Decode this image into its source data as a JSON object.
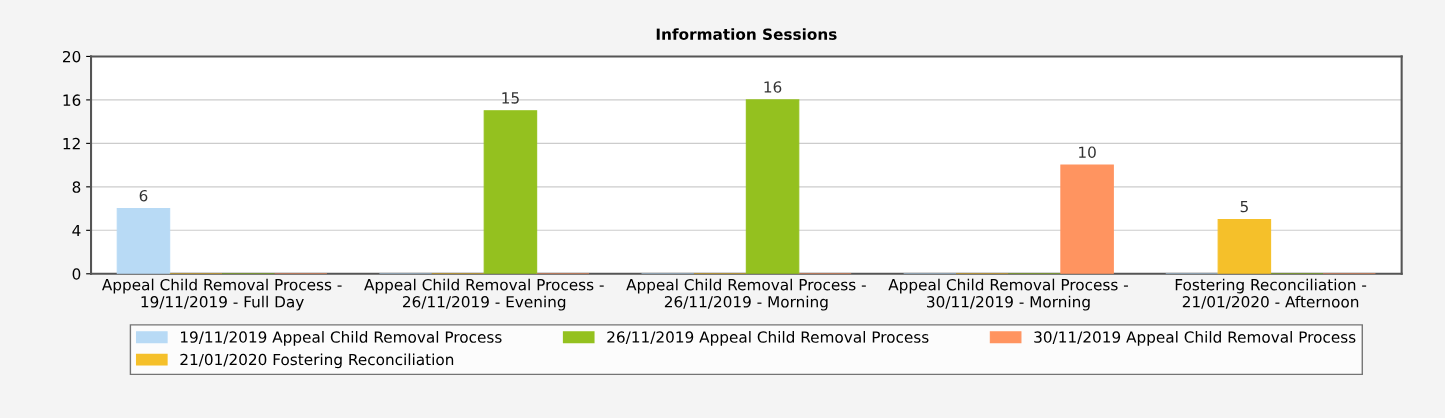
{
  "chart_data": {
    "type": "bar",
    "title": "Information Sessions",
    "categories": [
      "Appeal Child Removal Process -\n19/11/2019 - Full Day",
      "Appeal Child Removal Process -\n26/11/2019 - Evening",
      "Appeal Child Removal Process -\n26/11/2019 - Morning",
      "Appeal Child Removal Process -\n30/11/2019 - Morning",
      "Fostering Reconciliation -\n21/01/2020 - Afternoon"
    ],
    "series": [
      {
        "name": "19/11/2019 Appeal Child Removal Process",
        "color": "#b8daf5",
        "values": [
          6,
          0,
          0,
          0,
          0
        ],
        "value_labels": [
          "6",
          null,
          null,
          null,
          null
        ]
      },
      {
        "name": "21/01/2020 Fostering Reconciliation",
        "color": "#f5c02a",
        "values": [
          0,
          0,
          0,
          0,
          5
        ],
        "value_labels": [
          null,
          null,
          null,
          null,
          "5"
        ]
      },
      {
        "name": "26/11/2019 Appeal Child Removal Process",
        "color": "#94c11f",
        "values": [
          0,
          15,
          16,
          0,
          0
        ],
        "value_labels": [
          null,
          "15",
          "16",
          null,
          null
        ]
      },
      {
        "name": "30/11/2019 Appeal Child Removal Process",
        "color": "#ff9460",
        "values": [
          0,
          0,
          0,
          10,
          0
        ],
        "value_labels": [
          null,
          null,
          null,
          "10",
          null
        ]
      }
    ],
    "ylim": [
      0,
      20
    ],
    "yticks": [
      0,
      4,
      8,
      12,
      16,
      20
    ],
    "grid": "y",
    "legend": "bottom"
  }
}
